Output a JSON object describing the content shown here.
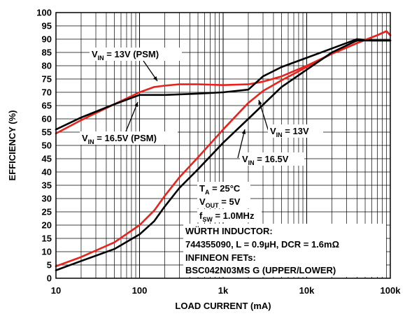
{
  "chart_data": {
    "type": "line",
    "xlabel": "LOAD CURRENT (mA)",
    "ylabel": "EFFICIENCY (%)",
    "x_scale": "log",
    "xlim": [
      10,
      100000
    ],
    "ylim": [
      0,
      100
    ],
    "grid": true,
    "x_tick_labels": [
      "10",
      "100",
      "1k",
      "10k",
      "100k"
    ],
    "y_ticks": [
      0,
      5,
      10,
      15,
      20,
      25,
      30,
      35,
      40,
      45,
      50,
      55,
      60,
      65,
      70,
      75,
      80,
      85,
      90,
      95,
      100
    ],
    "series": [
      {
        "name": "VIN = 13V (PSM)",
        "color": "#e8221c",
        "x": [
          10,
          20,
          50,
          100,
          150,
          200,
          300,
          500,
          1000,
          2000,
          3000,
          5000,
          10000,
          20000,
          40000,
          70000,
          90000,
          100000
        ],
        "y": [
          54.5,
          59.5,
          65.5,
          70,
          72,
          72.5,
          73,
          73,
          72.7,
          73,
          74,
          76,
          80,
          84.5,
          88.5,
          91.5,
          93,
          91.5
        ]
      },
      {
        "name": "VIN = 16.5V (PSM)",
        "color": "#000000",
        "x": [
          10,
          20,
          50,
          100,
          200,
          500,
          1000,
          2000,
          3000,
          5000,
          10000,
          20000,
          40000,
          60000,
          100000
        ],
        "y": [
          56,
          60.5,
          65.5,
          69,
          69,
          69.5,
          70,
          71,
          76,
          79.5,
          83,
          86.5,
          90,
          89.5,
          89.5
        ]
      },
      {
        "name": "VIN = 13V",
        "color": "#e8221c",
        "x": [
          10,
          20,
          50,
          100,
          150,
          200,
          300,
          500,
          1000,
          2000,
          3000,
          5000,
          10000,
          20000,
          40000,
          70000,
          90000,
          100000
        ],
        "y": [
          4.5,
          8,
          13.5,
          20,
          25.5,
          31,
          38,
          45.5,
          56,
          66,
          70.5,
          74.5,
          79.5,
          84.5,
          88.5,
          91.5,
          93,
          91.5
        ]
      },
      {
        "name": "VIN = 16.5V",
        "color": "#000000",
        "x": [
          10,
          20,
          50,
          100,
          150,
          200,
          300,
          500,
          1000,
          2000,
          5000,
          10000,
          20000,
          40000,
          60000,
          100000
        ],
        "y": [
          3,
          6.5,
          11,
          16.5,
          21.5,
          27,
          34,
          41,
          51,
          60,
          72,
          78.5,
          85,
          89.5,
          89.5,
          89.5
        ]
      }
    ],
    "annotations": [
      {
        "parts": [
          "V",
          "IN",
          " = 13V (PSM)"
        ]
      },
      {
        "parts": [
          "V",
          "IN",
          " = 16.5V (PSM)"
        ]
      },
      {
        "parts": [
          "V",
          "IN",
          " = 13V"
        ]
      },
      {
        "parts": [
          "V",
          "IN",
          " = 16.5V"
        ]
      },
      {
        "parts": [
          "T",
          "A",
          " = 25°C"
        ]
      },
      {
        "parts": [
          "V",
          "OUT",
          " = 5V"
        ]
      },
      {
        "parts": [
          "f",
          "SW",
          " = 1.0MHz"
        ]
      }
    ],
    "notes": [
      "WÜRTH INDUCTOR:",
      "744355090, L = 0.9µH, DCR = 1.6mΩ",
      "INFINEON FETs:",
      "BSC042N03MS G (UPPER/LOWER)"
    ]
  }
}
